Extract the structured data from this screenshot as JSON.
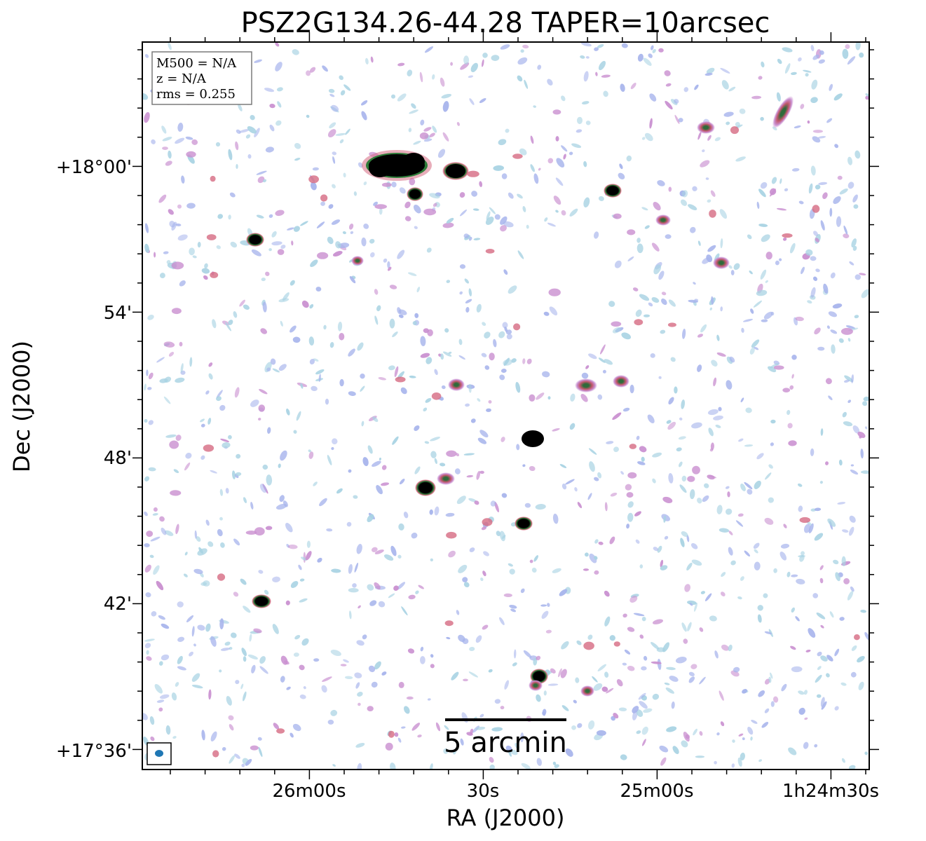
{
  "figure": {
    "title": "PSZ2G134.26-44.28 TAPER=10arcsec",
    "xlabel": "RA (J2000)",
    "ylabel": "Dec (J2000)"
  },
  "axes": {
    "x_ticks": [
      "26m00s",
      "30s",
      "25m00s",
      "1h24m30s"
    ],
    "y_ticks": [
      "+18°00'",
      "54'",
      "48'",
      "42'",
      "+17°36'"
    ]
  },
  "info_box": {
    "m500": "M500 = N/A",
    "z": "z = N/A",
    "rms": "rms = 0.255"
  },
  "scalebar": {
    "label": "5 arcmin"
  },
  "colors": {
    "faint_emission": "#a9d3e3",
    "low_emission": "#a7b4ec",
    "mid_emission": "#c98fd0",
    "high_emission": "#d66a82",
    "bright_source": "#000000",
    "source_rim": "#2f7d3a",
    "beam": "#1f77b4"
  }
}
